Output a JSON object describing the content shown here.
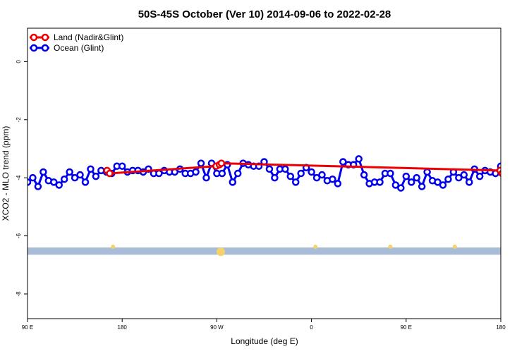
{
  "chart_data": {
    "type": "line",
    "title": "50S-45S October (Ver 10)   2014-09-06 to 2022-02-28",
    "xlabel": "Longitude (deg E)",
    "ylabel": "XCO2 - MLO trend (ppm)",
    "xlim": [
      90,
      450
    ],
    "ylim": [
      -8.85,
      1.15
    ],
    "x_ticks": [
      {
        "value": 90,
        "label": "90 E"
      },
      {
        "value": 180,
        "label": "180"
      },
      {
        "value": 270,
        "label": "90 W"
      },
      {
        "value": 360,
        "label": "0"
      },
      {
        "value": 450,
        "label": "90 E"
      },
      {
        "value": 540,
        "label": "180"
      }
    ],
    "y_ticks": [
      {
        "value": 0,
        "label": "0"
      },
      {
        "value": -2,
        "label": "-2"
      },
      {
        "value": -4,
        "label": "-4"
      },
      {
        "value": -6,
        "label": "-6"
      },
      {
        "value": -8,
        "label": "-8"
      }
    ],
    "legend": {
      "position": "top-left",
      "entries": [
        {
          "label": "Land (Nadir&Glint)",
          "color": "#ee0000"
        },
        {
          "label": "Ocean (Glint)",
          "color": "#0000ee"
        }
      ]
    },
    "coverage_band": {
      "y_top": -6.4,
      "y_bottom": -6.65,
      "color": "#a8bcd8"
    },
    "land_markers": {
      "y": -6.55,
      "color": "#f5d26a",
      "x": [
        155,
        237,
        309,
        366,
        415
      ]
    },
    "series": [
      {
        "name": "Land (Nadir&Glint)",
        "color": "#ee0000",
        "x": [
          150.5,
          152.5,
          233.5,
          236,
          237.5,
          449.5,
          451
        ],
        "y": [
          -3.75,
          -3.85,
          -3.6,
          -3.55,
          -3.5,
          -3.75,
          -3.85
        ]
      },
      {
        "name": "Ocean (Glint)",
        "color": "#0000ee",
        "x": [
          90,
          94,
          98,
          102,
          106,
          110,
          114,
          118,
          122,
          126,
          130,
          134,
          138,
          142,
          146,
          150,
          154,
          158,
          162,
          166,
          170,
          174,
          178,
          182,
          186,
          190,
          194,
          198,
          202,
          206,
          210,
          214,
          218,
          222,
          226,
          230,
          234,
          238,
          242,
          246,
          250,
          254,
          258,
          262,
          266,
          270,
          274,
          278,
          282,
          286,
          290,
          294,
          298,
          302,
          306,
          310,
          314,
          318,
          322,
          326,
          330,
          334,
          338,
          342,
          346,
          350,
          354,
          358,
          362,
          366,
          370,
          374,
          378,
          382,
          386,
          390,
          394,
          398,
          402,
          406,
          410,
          414,
          418,
          422,
          426,
          430,
          434,
          438,
          442,
          446,
          450,
          454,
          458
        ],
        "y": [
          -4.15,
          -4.0,
          -4.3,
          -3.8,
          -4.1,
          -4.15,
          -4.25,
          -4.05,
          -3.8,
          -4.0,
          -3.9,
          -4.15,
          -3.7,
          -3.95,
          -3.75,
          -3.8,
          -3.85,
          -3.6,
          -3.6,
          -3.8,
          -3.75,
          -3.75,
          -3.8,
          -3.7,
          -3.85,
          -3.85,
          -3.75,
          -3.8,
          -3.8,
          -3.7,
          -3.85,
          -3.85,
          -3.8,
          -3.5,
          -4.0,
          -3.5,
          -3.85,
          -3.85,
          -3.55,
          -4.15,
          -3.85,
          -3.5,
          -3.55,
          -3.6,
          -3.6,
          -3.45,
          -3.7,
          -4.0,
          -3.7,
          -3.7,
          -3.95,
          -4.15,
          -3.85,
          -3.65,
          -3.8,
          -4.0,
          -3.9,
          -4.1,
          -4.05,
          -4.2,
          -3.45,
          -3.55,
          -3.55,
          -3.35,
          -3.9,
          -4.2,
          -4.15,
          -4.15,
          -3.85,
          -3.85,
          -4.25,
          -4.35,
          -3.95,
          -4.15,
          -4.0,
          -4.3,
          -3.8,
          -4.1,
          -4.15,
          -4.25,
          -4.05,
          -3.8,
          -4.0,
          -3.9,
          -4.15,
          -3.7,
          -3.95,
          -3.75,
          -3.8,
          -3.85,
          -3.6,
          -3.6,
          -3.8
        ]
      }
    ]
  }
}
